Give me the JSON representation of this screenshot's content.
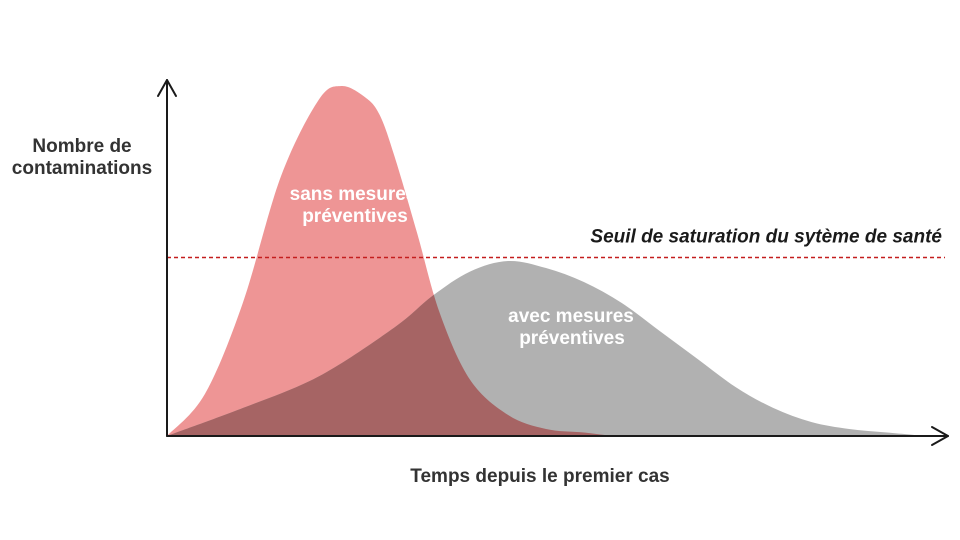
{
  "chart_data": {
    "type": "area",
    "title": "",
    "xlabel": "Temps depuis le premier cas",
    "ylabel": [
      "Nombre de",
      "contaminations"
    ],
    "grid": false,
    "xlim": [
      0,
      100
    ],
    "ylim": [
      0,
      100
    ],
    "series": [
      {
        "label": [
          "sans mesures",
          "préventives"
        ],
        "color": "#ec8a8a",
        "opacity": 0.9,
        "x": [
          0,
          5,
          10,
          15,
          20,
          23,
          26,
          28,
          30,
          33,
          36,
          40,
          45,
          50,
          55,
          60,
          70,
          80
        ],
        "y": [
          0,
          12,
          38,
          74,
          96,
          100,
          97,
          92,
          80,
          58,
          35,
          16,
          6,
          2,
          1,
          0,
          0,
          0
        ]
      },
      {
        "label": [
          "avec mesures",
          "préventives"
        ],
        "color": "#a8a8a8",
        "opacity": 0.9,
        "x": [
          0,
          10,
          20,
          30,
          35,
          40,
          45,
          50,
          55,
          60,
          65,
          70,
          75,
          80,
          85,
          90,
          95,
          100
        ],
        "y": [
          0,
          8,
          17,
          31,
          40,
          47,
          50,
          48,
          44,
          38,
          30,
          22,
          14,
          8,
          4,
          2,
          1,
          0
        ]
      }
    ],
    "threshold": {
      "label": "Seuil de saturation du sytème de santé",
      "value": 51,
      "color": "#c41e1e"
    },
    "overlap_color": "#a66464"
  }
}
